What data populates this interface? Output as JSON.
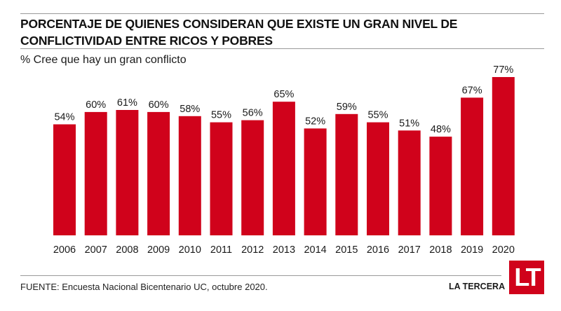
{
  "header": {
    "title": "PORCENTAJE DE QUIENES CONSIDERAN QUE EXISTE UN GRAN NIVEL DE CONFLICTIVIDAD ENTRE RICOS Y POBRES",
    "subtitle": "% Cree que hay un gran conflicto"
  },
  "footer": {
    "source": "FUENTE:  Encuesta Nacional Bicentenario UC, octubre 2020.",
    "brand": "LA TERCERA",
    "logo_text": "LT"
  },
  "colors": {
    "bar": "#d0021b",
    "text": "#1a1a1a",
    "rule": "#9a9a9a"
  },
  "chart_data": {
    "type": "bar",
    "title": "PORCENTAJE DE QUIENES CONSIDERAN QUE EXISTE UN GRAN NIVEL DE CONFLICTIVIDAD ENTRE RICOS Y POBRES",
    "subtitle": "% Cree que hay un gran conflicto",
    "xlabel": "",
    "ylabel": "",
    "categories": [
      "2006",
      "2007",
      "2008",
      "2009",
      "2010",
      "2011",
      "2012",
      "2013",
      "2014",
      "2015",
      "2016",
      "2017",
      "2018",
      "2019",
      "2020"
    ],
    "values": [
      54,
      60,
      61,
      60,
      58,
      55,
      56,
      65,
      52,
      59,
      55,
      51,
      48,
      67,
      77
    ],
    "value_labels": [
      "54%",
      "60%",
      "61%",
      "60%",
      "58%",
      "55%",
      "56%",
      "65%",
      "52%",
      "59%",
      "55%",
      "51%",
      "48%",
      "67%",
      "77%"
    ],
    "ylim": [
      0,
      77
    ],
    "grid": false,
    "legend": "none"
  }
}
